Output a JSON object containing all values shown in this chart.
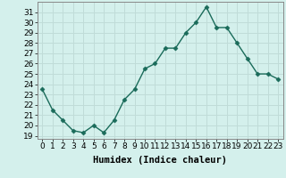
{
  "x": [
    0,
    1,
    2,
    3,
    4,
    5,
    6,
    7,
    8,
    9,
    10,
    11,
    12,
    13,
    14,
    15,
    16,
    17,
    18,
    19,
    20,
    21,
    22,
    23
  ],
  "y": [
    23.5,
    21.5,
    20.5,
    19.5,
    19.3,
    20.0,
    19.3,
    20.5,
    22.5,
    23.5,
    25.5,
    26.0,
    27.5,
    27.5,
    29.0,
    30.0,
    31.5,
    29.5,
    29.5,
    28.0,
    26.5,
    25.0,
    25.0,
    24.5
  ],
  "line_color": "#1a6b5a",
  "marker": "D",
  "marker_size": 2.5,
  "linewidth": 1.0,
  "xlabel": "Humidex (Indice chaleur)",
  "xlim": [
    -0.5,
    23.5
  ],
  "ylim_min": 18.7,
  "ylim_max": 32.0,
  "yticks": [
    19,
    20,
    21,
    22,
    23,
    24,
    25,
    26,
    27,
    28,
    29,
    30,
    31
  ],
  "xticks": [
    0,
    1,
    2,
    3,
    4,
    5,
    6,
    7,
    8,
    9,
    10,
    11,
    12,
    13,
    14,
    15,
    16,
    17,
    18,
    19,
    20,
    21,
    22,
    23
  ],
  "bg_color": "#d4f0ec",
  "grid_color": "#c0dcd8",
  "tick_label_fontsize": 6.5,
  "xlabel_fontsize": 7.5,
  "spine_color": "#888888"
}
